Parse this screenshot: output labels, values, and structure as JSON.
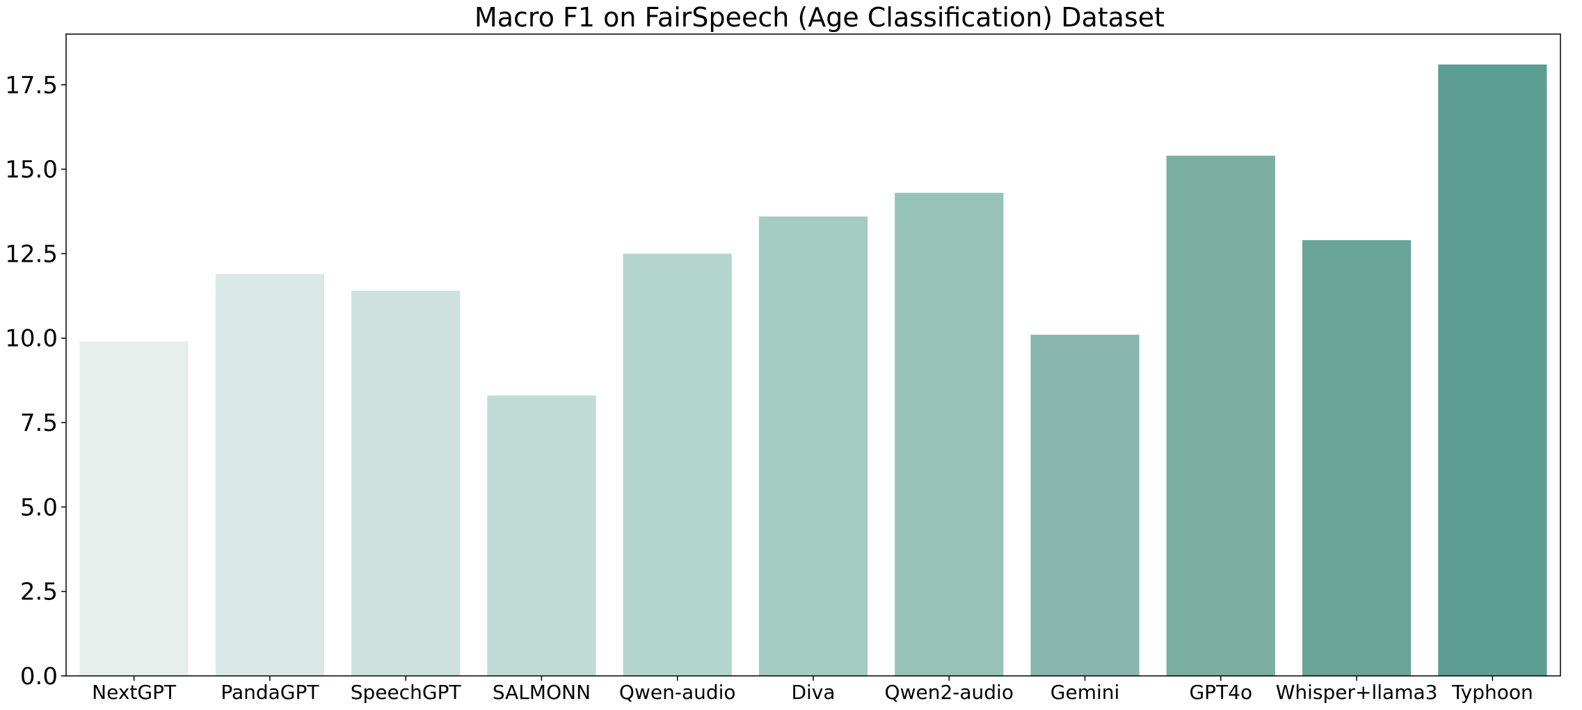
{
  "chart_data": {
    "type": "bar",
    "title": "Macro F1 on FairSpeech (Age Classification) Dataset",
    "xlabel": "",
    "ylabel": "",
    "categories": [
      "NextGPT",
      "PandaGPT",
      "SpeechGPT",
      "SALMONN",
      "Qwen-audio",
      "Diva",
      "Qwen2-audio",
      "Gemini",
      "GPT4o",
      "Whisper+llama3",
      "Typhoon"
    ],
    "values": [
      9.9,
      11.9,
      11.4,
      8.3,
      12.5,
      13.6,
      14.3,
      10.1,
      15.4,
      12.9,
      18.1
    ],
    "colors": [
      "#e7eeec",
      "#dae8e5",
      "#cde2de",
      "#c0dbd5",
      "#b3d4cd",
      "#a5cbc3",
      "#97c2b8",
      "#88b8ad",
      "#79aea1",
      "#6aa597",
      "#5c9e8f"
    ],
    "ylim": [
      0,
      19
    ],
    "yticks": [
      0.0,
      2.5,
      5.0,
      7.5,
      10.0,
      12.5,
      15.0,
      17.5
    ],
    "ytick_labels": [
      "0.0",
      "2.5",
      "5.0",
      "7.5",
      "10.0",
      "12.5",
      "15.0",
      "17.5"
    ],
    "grid": false,
    "legend": "none"
  }
}
